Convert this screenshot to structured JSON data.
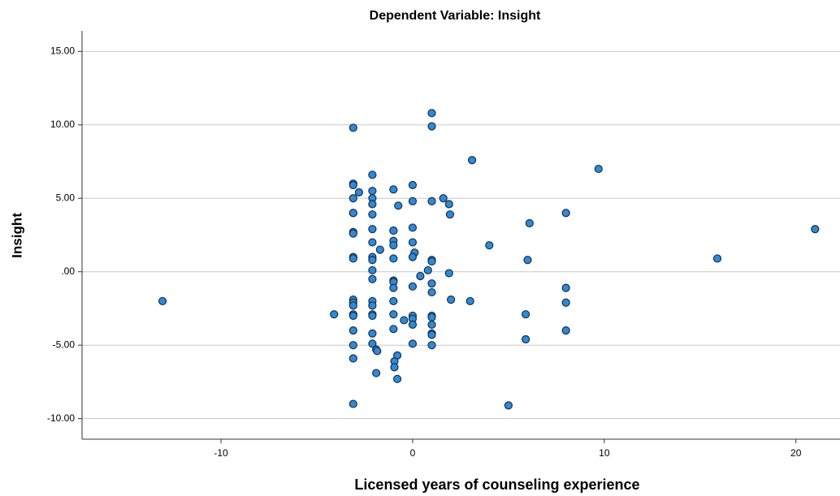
{
  "chart_data": {
    "type": "scatter",
    "title": "Dependent Variable: Insight",
    "xlabel": "Licensed years of counseling experience",
    "ylabel": "Insight",
    "color": "#2e8ad8",
    "edgecolor": "#1a2f45",
    "grid": true,
    "xlim": [
      -17.25,
      22.3
    ],
    "ylim": [
      -11.4,
      16.4
    ],
    "xticks": [
      -10,
      0,
      10,
      20
    ],
    "yticks": [
      {
        "value": -10,
        "label": "-10.00"
      },
      {
        "value": -5,
        "label": "-5.00"
      },
      {
        "value": 0,
        "label": ".00"
      },
      {
        "value": 5,
        "label": "5.00"
      },
      {
        "value": 10,
        "label": "10.00"
      },
      {
        "value": 15,
        "label": "15.00"
      }
    ],
    "x": [
      -13.05,
      -4.1,
      -3.1,
      -3.1,
      -3.1,
      -3.1,
      -2.8,
      -3.1,
      -3.1,
      -3.1,
      -3.1,
      -3.1,
      -3.1,
      -3.1,
      -3.1,
      -3.1,
      -3.1,
      -3.1,
      -3.1,
      -3.1,
      -3.1,
      -3.1,
      -2.1,
      -2.1,
      -2.1,
      -2.1,
      -2.1,
      -2.1,
      -2.1,
      -2.1,
      -2.1,
      -2.1,
      -2.1,
      -2.1,
      -2.1,
      -2.1,
      -2.1,
      -2.1,
      -2.1,
      -1.9,
      -1.85,
      -1.9,
      -1.7,
      -1.0,
      -1.0,
      -1.0,
      -1.0,
      -1.0,
      -1.0,
      -1.0,
      -1.0,
      -1.0,
      -1.0,
      -1.0,
      -1.0,
      -0.8,
      -0.95,
      -0.95,
      -0.8,
      -0.75,
      0.0,
      0.0,
      0.0,
      0.0,
      0.1,
      0.0,
      0.0,
      0.0,
      0.0,
      0.0,
      0.0,
      -0.45,
      0.4,
      0.8,
      1.0,
      1.0,
      1.0,
      1.0,
      1.0,
      1.0,
      1.0,
      1.0,
      1.0,
      1.0,
      1.0,
      1.0,
      1.0,
      1.6,
      1.9,
      1.9,
      1.95,
      2.0,
      3.0,
      3.1,
      4.0,
      5.0,
      5.9,
      5.9,
      6.0,
      6.1,
      8.0,
      8.0,
      8.0,
      8.0,
      9.7,
      15.9,
      21.0
    ],
    "y": [
      -2.0,
      -2.9,
      9.8,
      6.0,
      5.9,
      5.0,
      5.4,
      4.0,
      4.0,
      2.7,
      2.6,
      1.0,
      0.9,
      -1.9,
      -2.1,
      -2.3,
      -2.9,
      -3.0,
      -4.0,
      -5.0,
      -5.9,
      -9.0,
      6.6,
      5.5,
      5.0,
      4.6,
      3.9,
      2.9,
      2.0,
      1.0,
      0.8,
      0.1,
      -0.5,
      -2.0,
      -2.3,
      -2.9,
      -3.0,
      -4.2,
      -4.9,
      -5.3,
      -5.4,
      -6.9,
      1.5,
      5.6,
      2.8,
      2.8,
      2.1,
      1.8,
      0.9,
      -0.6,
      -0.7,
      -1.1,
      -2.0,
      -2.9,
      -3.9,
      -5.7,
      -6.1,
      -6.5,
      -7.3,
      4.5,
      5.9,
      4.8,
      3.0,
      2.0,
      1.3,
      1.0,
      -1.0,
      -3.0,
      -3.2,
      -3.6,
      -4.9,
      -3.3,
      -0.3,
      0.1,
      10.8,
      9.9,
      4.8,
      0.8,
      0.7,
      -0.8,
      -1.4,
      -3.0,
      -3.1,
      -3.6,
      -4.2,
      -4.3,
      -5.0,
      5.0,
      4.6,
      -0.1,
      3.9,
      -1.9,
      -2.0,
      7.6,
      1.8,
      -9.1,
      -2.9,
      -4.6,
      0.8,
      3.3,
      4.0,
      -1.1,
      -2.1,
      -4.0,
      7.0,
      0.9,
      2.9
    ]
  }
}
